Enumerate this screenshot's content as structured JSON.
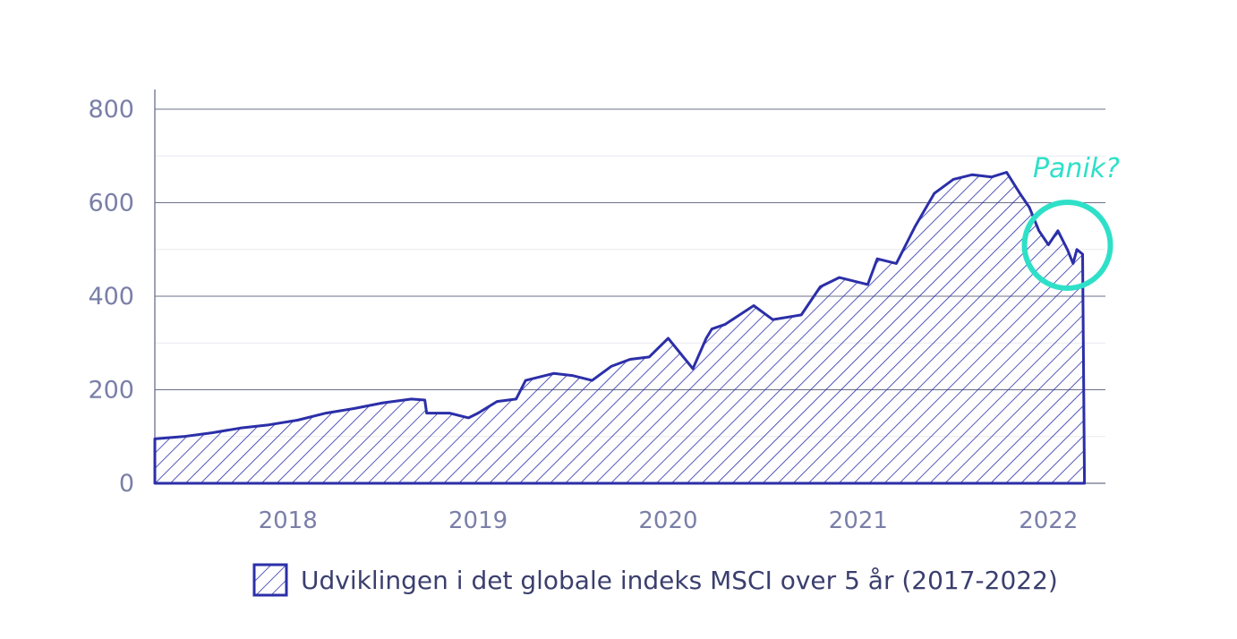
{
  "chart_data": {
    "type": "area",
    "title": "",
    "xlabel": "",
    "ylabel": "",
    "x_tick_labels": [
      "2018",
      "2019",
      "2020",
      "2021",
      "2022"
    ],
    "x_tick_years": [
      2018,
      2019,
      2020,
      2021,
      2022
    ],
    "xlim": [
      2017.3,
      2022.3
    ],
    "y_ticks": [
      0,
      200,
      400,
      600,
      800
    ],
    "y_tick_labels": [
      "0",
      "200",
      "400",
      "600",
      "800"
    ],
    "ylim": [
      0,
      800
    ],
    "grid": true,
    "legend": {
      "position": "bottom",
      "label": "Udviklingen i det globale indeks MSCI over 5 år  (2017-2022)"
    },
    "annotation": {
      "text": "Panik?",
      "target_x": 2022.1,
      "target_y": 490
    },
    "colors": {
      "series": "#2b2fa8",
      "annotation": "#2fe0c8",
      "axis_text": "#7a7fa8",
      "grid": "#6b6f8a"
    },
    "series": [
      {
        "x": [
          2017.3,
          2017.45,
          2017.6,
          2017.75,
          2017.9,
          2018.05,
          2018.2,
          2018.35,
          2018.5,
          2018.65,
          2018.72,
          2018.73,
          2018.85,
          2018.95,
          2019.0,
          2019.1,
          2019.2,
          2019.25,
          2019.4,
          2019.5,
          2019.6,
          2019.7,
          2019.8,
          2019.9,
          2020.0,
          2020.1,
          2020.13,
          2020.2,
          2020.23,
          2020.3,
          2020.45,
          2020.55,
          2020.7,
          2020.8,
          2020.9,
          2021.0,
          2021.05,
          2021.1,
          2021.2,
          2021.3,
          2021.4,
          2021.5,
          2021.6,
          2021.7,
          2021.78,
          2021.85,
          2021.9,
          2021.95,
          2022.0,
          2022.05,
          2022.1,
          2022.13,
          2022.15,
          2022.18,
          2022.19
        ],
        "y": [
          95,
          100,
          108,
          118,
          125,
          135,
          150,
          160,
          172,
          180,
          178,
          150,
          150,
          140,
          150,
          175,
          180,
          220,
          235,
          230,
          220,
          250,
          265,
          270,
          310,
          260,
          245,
          310,
          330,
          340,
          380,
          350,
          360,
          420,
          440,
          430,
          425,
          480,
          470,
          550,
          620,
          650,
          660,
          655,
          665,
          620,
          590,
          540,
          510,
          540,
          500,
          470,
          500,
          490,
          0
        ]
      }
    ]
  }
}
